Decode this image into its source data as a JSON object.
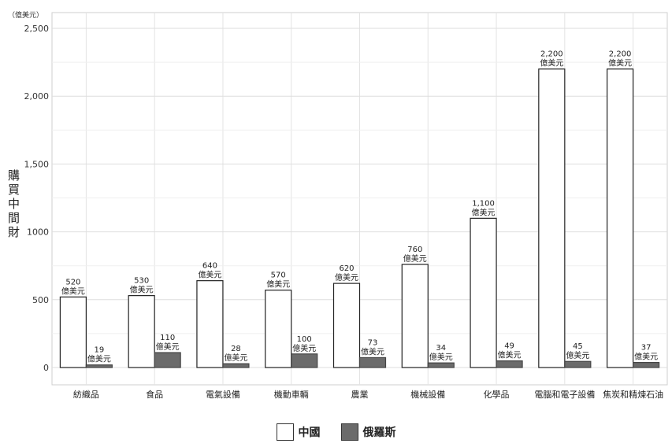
{
  "chart_data": {
    "type": "bar",
    "unit_note": "（億美元）",
    "ylabel": "購買中間財",
    "ylim": [
      0,
      2500
    ],
    "yticks": [
      0,
      500,
      1000,
      1500,
      2000,
      2500
    ],
    "ytick_labels": [
      "0",
      "500",
      "1000",
      "1,500",
      "2,000",
      "2,500"
    ],
    "categories": [
      "紡織品",
      "食品",
      "電氣設備",
      "機動車輛",
      "農業",
      "機械設備",
      "化學品",
      "電腦和電子設備",
      "焦炭和精煉石油"
    ],
    "series": [
      {
        "name": "中國",
        "color": "#ffffff",
        "values": [
          520,
          530,
          640,
          570,
          620,
          760,
          1100,
          2200,
          2200
        ],
        "labels": [
          "520",
          "530",
          "640",
          "570",
          "620",
          "760",
          "1,100",
          "2,200",
          "2,200"
        ]
      },
      {
        "name": "俄羅斯",
        "color": "#6b6b6b",
        "values": [
          19,
          110,
          28,
          100,
          73,
          34,
          49,
          45,
          37
        ],
        "labels": [
          "19",
          "110",
          "28",
          "100",
          "73",
          "34",
          "49",
          "45",
          "37"
        ]
      }
    ],
    "value_unit": "億美元",
    "grid": true,
    "legend_position": "bottom"
  }
}
